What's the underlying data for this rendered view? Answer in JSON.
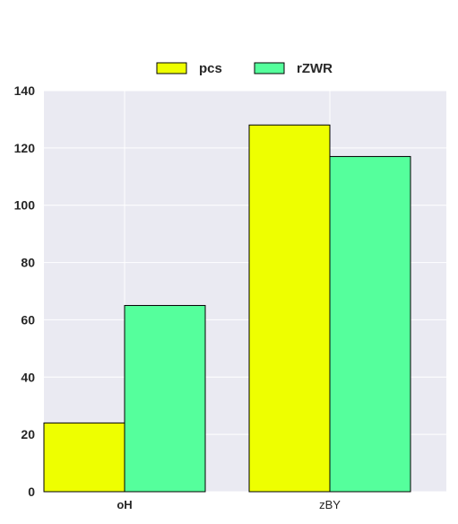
{
  "chart_data": {
    "type": "bar",
    "categories": [
      "oH",
      "zBY"
    ],
    "category_label_weight": [
      "bold",
      "normal"
    ],
    "series": [
      {
        "name": "pcs",
        "color": "#eeff00",
        "values": [
          24,
          128
        ]
      },
      {
        "name": "rZWR",
        "color": "#55ff9c",
        "values": [
          65,
          117
        ]
      }
    ],
    "title": "",
    "xlabel": "",
    "ylabel": "",
    "ylim": [
      0,
      140
    ],
    "yticks": [
      0,
      20,
      40,
      60,
      80,
      100,
      120,
      140
    ],
    "grid": true,
    "legend_position": "top-center",
    "background_color": "#eaeaf2",
    "grid_color": "#ffffff"
  }
}
